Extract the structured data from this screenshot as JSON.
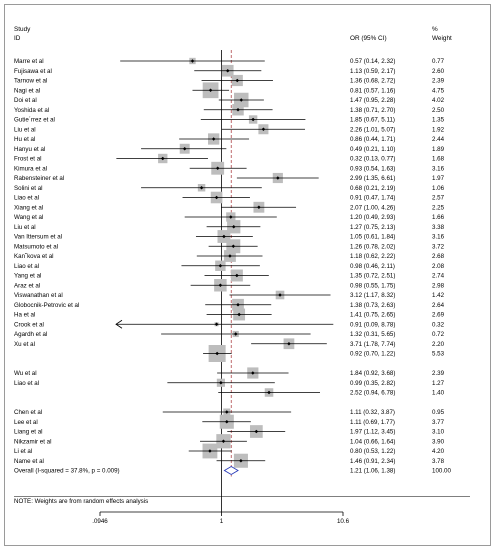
{
  "header": {
    "study_col": "Study",
    "id_col": "ID",
    "or_col": "OR (95% CI)",
    "pct_col": "%",
    "weight_col": "Weight"
  },
  "note": "NOTE: Weights are from random effects analysis",
  "chart_data": {
    "type": "forest",
    "xscale": "log",
    "xlim": [
      0.0946,
      10.6
    ],
    "xticks": [
      0.0946,
      1,
      10.6
    ],
    "xtick_labels": [
      ".0946",
      "1",
      "10.6"
    ],
    "null_line": 1,
    "pooled_line": 1.21,
    "rows": [
      {
        "label": "Marre et al",
        "or": 0.57,
        "lo": 0.14,
        "hi": 2.32,
        "ci_text": "0.57 (0.14, 2.32)",
        "weight": "0.77"
      },
      {
        "label": "Fujisawa et al",
        "or": 1.13,
        "lo": 0.59,
        "hi": 2.17,
        "ci_text": "1.13 (0.59, 2.17)",
        "weight": "2.60"
      },
      {
        "label": "Tarnow et al",
        "or": 1.36,
        "lo": 0.68,
        "hi": 2.72,
        "ci_text": "1.36 (0.68, 2.72)",
        "weight": "2.39"
      },
      {
        "label": "Nagi et al",
        "or": 0.81,
        "lo": 0.57,
        "hi": 1.16,
        "ci_text": "0.81 (0.57, 1.16)",
        "weight": "4.75"
      },
      {
        "label": "Doi et al",
        "or": 1.47,
        "lo": 0.95,
        "hi": 2.28,
        "ci_text": "1.47 (0.95, 2.28)",
        "weight": "4.02"
      },
      {
        "label": "Yoshida et al",
        "or": 1.38,
        "lo": 0.71,
        "hi": 2.7,
        "ci_text": "1.38 (0.71, 2.70)",
        "weight": "2.50"
      },
      {
        "label": "Gutie´rrez et al",
        "or": 1.85,
        "lo": 0.67,
        "hi": 5.11,
        "ci_text": "1.85 (0.67, 5.11)",
        "weight": "1.35"
      },
      {
        "label": "Liu et al",
        "or": 2.26,
        "lo": 1.01,
        "hi": 5.07,
        "ci_text": "2.26 (1.01, 5.07)",
        "weight": "1.92"
      },
      {
        "label": "Hu et al",
        "or": 0.86,
        "lo": 0.44,
        "hi": 1.71,
        "ci_text": "0.86 (0.44, 1.71)",
        "weight": "2.44"
      },
      {
        "label": "Hanyu et al",
        "or": 0.49,
        "lo": 0.21,
        "hi": 1.1,
        "ci_text": "0.49 (0.21, 1.10)",
        "weight": "1.89"
      },
      {
        "label": "Frost et al",
        "or": 0.32,
        "lo": 0.13,
        "hi": 0.77,
        "ci_text": "0.32 (0.13, 0.77)",
        "weight": "1.68"
      },
      {
        "label": "Kimura et al",
        "or": 0.93,
        "lo": 0.54,
        "hi": 1.63,
        "ci_text": "0.93 (0.54, 1.63)",
        "weight": "3.16"
      },
      {
        "label": "Rabensteiner et al",
        "or": 2.99,
        "lo": 1.35,
        "hi": 6.61,
        "ci_text": "2.99 (1.35, 6.61)",
        "weight": "1.97"
      },
      {
        "label": "Solini et al",
        "or": 0.68,
        "lo": 0.21,
        "hi": 2.19,
        "ci_text": "0.68 (0.21, 2.19)",
        "weight": "1.06"
      },
      {
        "label": "Liao et al",
        "or": 0.91,
        "lo": 0.47,
        "hi": 1.74,
        "ci_text": "0.91 (0.47, 1.74)",
        "weight": "2.57"
      },
      {
        "label": "Xiang et al",
        "or": 2.07,
        "lo": 1.0,
        "hi": 4.26,
        "ci_text": "2.07 (1.00, 4.26)",
        "weight": "2.25"
      },
      {
        "label": "Wang et al",
        "or": 1.2,
        "lo": 0.49,
        "hi": 2.93,
        "ci_text": "1.20 (0.49, 2.93)",
        "weight": "1.66"
      },
      {
        "label": "Liu et al",
        "or": 1.27,
        "lo": 0.75,
        "hi": 2.13,
        "ci_text": "1.27 (0.75, 2.13)",
        "weight": "3.38"
      },
      {
        "label": "Van Ittersum et al",
        "or": 1.05,
        "lo": 0.61,
        "hi": 1.84,
        "ci_text": "1.05 (0.61, 1.84)",
        "weight": "3.16"
      },
      {
        "label": "Matsumoto et al",
        "or": 1.26,
        "lo": 0.78,
        "hi": 2.02,
        "ci_text": "1.26 (0.78, 2.02)",
        "weight": "3.72"
      },
      {
        "label": "Kan˘kova et al",
        "or": 1.18,
        "lo": 0.62,
        "hi": 2.22,
        "ci_text": "1.18 (0.62, 2.22)",
        "weight": "2.68"
      },
      {
        "label": "Liao et al",
        "or": 0.98,
        "lo": 0.46,
        "hi": 2.11,
        "ci_text": "0.98 (0.46, 2.11)",
        "weight": "2.08"
      },
      {
        "label": "Yang et al",
        "or": 1.35,
        "lo": 0.72,
        "hi": 2.51,
        "ci_text": "1.35 (0.72, 2.51)",
        "weight": "2.74"
      },
      {
        "label": "Araz et al",
        "or": 0.98,
        "lo": 0.55,
        "hi": 1.75,
        "ci_text": "0.98 (0.55, 1.75)",
        "weight": "2.98"
      },
      {
        "label": "Viswanathan et al",
        "or": 3.12,
        "lo": 1.17,
        "hi": 8.32,
        "ci_text": "3.12 (1.17, 8.32)",
        "weight": "1.42"
      },
      {
        "label": "Globocnik-Petrovic et al",
        "or": 1.38,
        "lo": 0.73,
        "hi": 2.63,
        "ci_text": "1.38 (0.73, 2.63)",
        "weight": "2.64"
      },
      {
        "label": "Ha et al",
        "or": 1.41,
        "lo": 0.75,
        "hi": 2.65,
        "ci_text": "1.41 (0.75, 2.65)",
        "weight": "2.69"
      },
      {
        "label": "Crook et al",
        "or": 0.91,
        "lo": 0.09,
        "hi": 8.78,
        "ci_text": "0.91 (0.09, 8.78)",
        "weight": "0.32",
        "arrow_left": true
      },
      {
        "label": "Agardh et al",
        "or": 1.32,
        "lo": 0.31,
        "hi": 5.65,
        "ci_text": "1.32 (0.31, 5.65)",
        "weight": "0.72"
      },
      {
        "label": "Xu et al",
        "or": 3.71,
        "lo": 1.78,
        "hi": 7.74,
        "ci_text": "3.71 (1.78, 7.74)",
        "weight": "2.20"
      },
      {
        "label": "",
        "or": 0.92,
        "lo": 0.7,
        "hi": 1.22,
        "ci_text": "0.92 (0.70, 1.22)",
        "weight": "5.53"
      },
      {
        "label": "",
        "or": 0,
        "lo": 0,
        "hi": 0,
        "ci_text": "",
        "weight": "",
        "empty": true
      },
      {
        "label": "Wu et al",
        "or": 1.84,
        "lo": 0.92,
        "hi": 3.68,
        "ci_text": "1.84 (0.92, 3.68)",
        "weight": "2.39"
      },
      {
        "label": "Liao et al",
        "or": 0.99,
        "lo": 0.35,
        "hi": 2.82,
        "ci_text": "0.99 (0.35, 2.82)",
        "weight": "1.27"
      },
      {
        "label": "",
        "or": 2.52,
        "lo": 0.94,
        "hi": 6.78,
        "ci_text": "2.52 (0.94, 6.78)",
        "weight": "1.40"
      },
      {
        "label": "",
        "or": 0,
        "lo": 0,
        "hi": 0,
        "ci_text": "",
        "weight": "",
        "empty": true
      },
      {
        "label": "Chen et al",
        "or": 1.11,
        "lo": 0.32,
        "hi": 3.87,
        "ci_text": "1.11 (0.32, 3.87)",
        "weight": "0.95"
      },
      {
        "label": "Lee et al",
        "or": 1.11,
        "lo": 0.69,
        "hi": 1.77,
        "ci_text": "1.11 (0.69, 1.77)",
        "weight": "3.77"
      },
      {
        "label": "Liang et al",
        "or": 1.97,
        "lo": 1.12,
        "hi": 3.45,
        "ci_text": "1.97 (1.12, 3.45)",
        "weight": "3.10"
      },
      {
        "label": "Nikzamir et al",
        "or": 1.04,
        "lo": 0.66,
        "hi": 1.64,
        "ci_text": "1.04 (0.66, 1.64)",
        "weight": "3.90"
      },
      {
        "label": "Li et al",
        "or": 0.8,
        "lo": 0.53,
        "hi": 1.22,
        "ci_text": "0.80 (0.53, 1.22)",
        "weight": "4.20"
      },
      {
        "label": "Name et al",
        "or": 1.46,
        "lo": 0.91,
        "hi": 2.34,
        "ci_text": "1.46 (0.91, 2.34)",
        "weight": "3.78"
      }
    ],
    "overall": {
      "label": "Overall  (I-squared = 37.8%, p = 0.009)",
      "or": 1.21,
      "lo": 1.06,
      "hi": 1.38,
      "ci_text": "1.21 (1.06, 1.38)",
      "weight": "100.00"
    }
  }
}
